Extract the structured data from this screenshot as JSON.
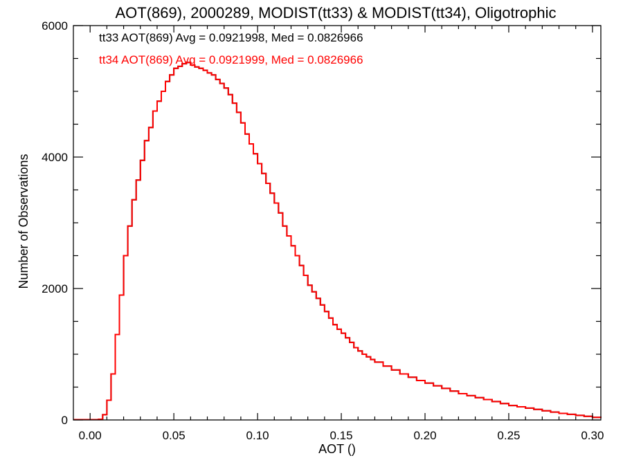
{
  "chart_data": {
    "type": "histogram-step",
    "title": "AOT(869), 2000289, MODIST(tt33) & MODIST(tt34), Oligotrophic",
    "xlabel": "AOT ()",
    "ylabel": "Number of Observations",
    "xlim": [
      -0.01,
      0.305
    ],
    "ylim": [
      0,
      6000
    ],
    "xticks": [
      0.0,
      0.05,
      0.1,
      0.15,
      0.2,
      0.25,
      0.3
    ],
    "xtick_labels": [
      "0.00",
      "0.05",
      "0.10",
      "0.15",
      "0.20",
      "0.25",
      "0.30"
    ],
    "yticks": [
      0,
      2000,
      4000,
      6000
    ],
    "ytick_labels": [
      "0",
      "2000",
      "4000",
      "6000"
    ],
    "grid": false,
    "legend_position": "top-left",
    "annotations": [
      {
        "text": "tt33 AOT(869) Avg = 0.0921998, Med = 0.0826966",
        "color": "#000000"
      },
      {
        "text": "tt34 AOT(869) Avg = 0.0921999, Med = 0.0826966",
        "color": "#ff0000"
      }
    ],
    "series": [
      {
        "color": "#000000",
        "x": [
          -0.01,
          0.0,
          0.005,
          0.0075,
          0.01,
          0.0125,
          0.015,
          0.0175,
          0.02,
          0.0225,
          0.025,
          0.0275,
          0.03,
          0.0325,
          0.035,
          0.0375,
          0.04,
          0.0425,
          0.045,
          0.0475,
          0.05,
          0.0525,
          0.055,
          0.0575,
          0.06,
          0.0625,
          0.065,
          0.0675,
          0.07,
          0.0725,
          0.075,
          0.0775,
          0.08,
          0.0825,
          0.085,
          0.0875,
          0.09,
          0.0925,
          0.095,
          0.0975,
          0.1,
          0.1025,
          0.105,
          0.1075,
          0.11,
          0.1125,
          0.115,
          0.1175,
          0.12,
          0.1225,
          0.125,
          0.1275,
          0.13,
          0.1325,
          0.135,
          0.1375,
          0.14,
          0.1425,
          0.145,
          0.1475,
          0.15,
          0.1525,
          0.155,
          0.1575,
          0.16,
          0.1625,
          0.165,
          0.1675,
          0.17,
          0.175,
          0.18,
          0.185,
          0.19,
          0.195,
          0.2,
          0.205,
          0.21,
          0.215,
          0.22,
          0.225,
          0.23,
          0.235,
          0.24,
          0.245,
          0.25,
          0.255,
          0.26,
          0.265,
          0.27,
          0.275,
          0.28,
          0.285,
          0.29,
          0.295,
          0.3,
          0.305
        ],
        "y": [
          5,
          5,
          10,
          80,
          300,
          700,
          1300,
          1900,
          2500,
          2950,
          3350,
          3650,
          3950,
          4250,
          4450,
          4700,
          4850,
          5000,
          5150,
          5250,
          5350,
          5380,
          5420,
          5440,
          5400,
          5370,
          5350,
          5320,
          5280,
          5250,
          5180,
          5120,
          5050,
          4950,
          4820,
          4680,
          4520,
          4350,
          4200,
          4050,
          3900,
          3750,
          3600,
          3450,
          3300,
          3150,
          2950,
          2800,
          2650,
          2500,
          2350,
          2200,
          2050,
          1950,
          1850,
          1750,
          1650,
          1550,
          1450,
          1380,
          1320,
          1250,
          1180,
          1100,
          1050,
          1000,
          960,
          920,
          880,
          820,
          760,
          700,
          650,
          600,
          560,
          520,
          480,
          440,
          400,
          370,
          340,
          310,
          280,
          250,
          220,
          200,
          180,
          160,
          140,
          120,
          100,
          85,
          70,
          55,
          40,
          30
        ]
      },
      {
        "color": "#ff0000",
        "x": [
          -0.01,
          0.0,
          0.005,
          0.0075,
          0.01,
          0.0125,
          0.015,
          0.0175,
          0.02,
          0.0225,
          0.025,
          0.0275,
          0.03,
          0.0325,
          0.035,
          0.0375,
          0.04,
          0.0425,
          0.045,
          0.0475,
          0.05,
          0.0525,
          0.055,
          0.0575,
          0.06,
          0.0625,
          0.065,
          0.0675,
          0.07,
          0.0725,
          0.075,
          0.0775,
          0.08,
          0.0825,
          0.085,
          0.0875,
          0.09,
          0.0925,
          0.095,
          0.0975,
          0.1,
          0.1025,
          0.105,
          0.1075,
          0.11,
          0.1125,
          0.115,
          0.1175,
          0.12,
          0.1225,
          0.125,
          0.1275,
          0.13,
          0.1325,
          0.135,
          0.1375,
          0.14,
          0.1425,
          0.145,
          0.1475,
          0.15,
          0.1525,
          0.155,
          0.1575,
          0.16,
          0.1625,
          0.165,
          0.1675,
          0.17,
          0.175,
          0.18,
          0.185,
          0.19,
          0.195,
          0.2,
          0.205,
          0.21,
          0.215,
          0.22,
          0.225,
          0.23,
          0.235,
          0.24,
          0.245,
          0.25,
          0.255,
          0.26,
          0.265,
          0.27,
          0.275,
          0.28,
          0.285,
          0.29,
          0.295,
          0.3,
          0.305
        ],
        "y": [
          5,
          5,
          10,
          80,
          300,
          700,
          1300,
          1900,
          2500,
          2950,
          3350,
          3650,
          3950,
          4250,
          4450,
          4700,
          4850,
          5000,
          5150,
          5250,
          5350,
          5380,
          5420,
          5440,
          5400,
          5370,
          5350,
          5320,
          5280,
          5250,
          5180,
          5120,
          5050,
          4950,
          4820,
          4680,
          4520,
          4350,
          4200,
          4050,
          3900,
          3750,
          3600,
          3450,
          3300,
          3150,
          2950,
          2800,
          2650,
          2500,
          2350,
          2200,
          2050,
          1950,
          1850,
          1750,
          1650,
          1550,
          1450,
          1380,
          1320,
          1250,
          1180,
          1100,
          1050,
          1000,
          960,
          920,
          880,
          820,
          760,
          700,
          650,
          600,
          560,
          520,
          480,
          440,
          400,
          370,
          340,
          310,
          280,
          250,
          220,
          200,
          180,
          160,
          140,
          120,
          100,
          85,
          70,
          55,
          40,
          30
        ]
      }
    ]
  }
}
